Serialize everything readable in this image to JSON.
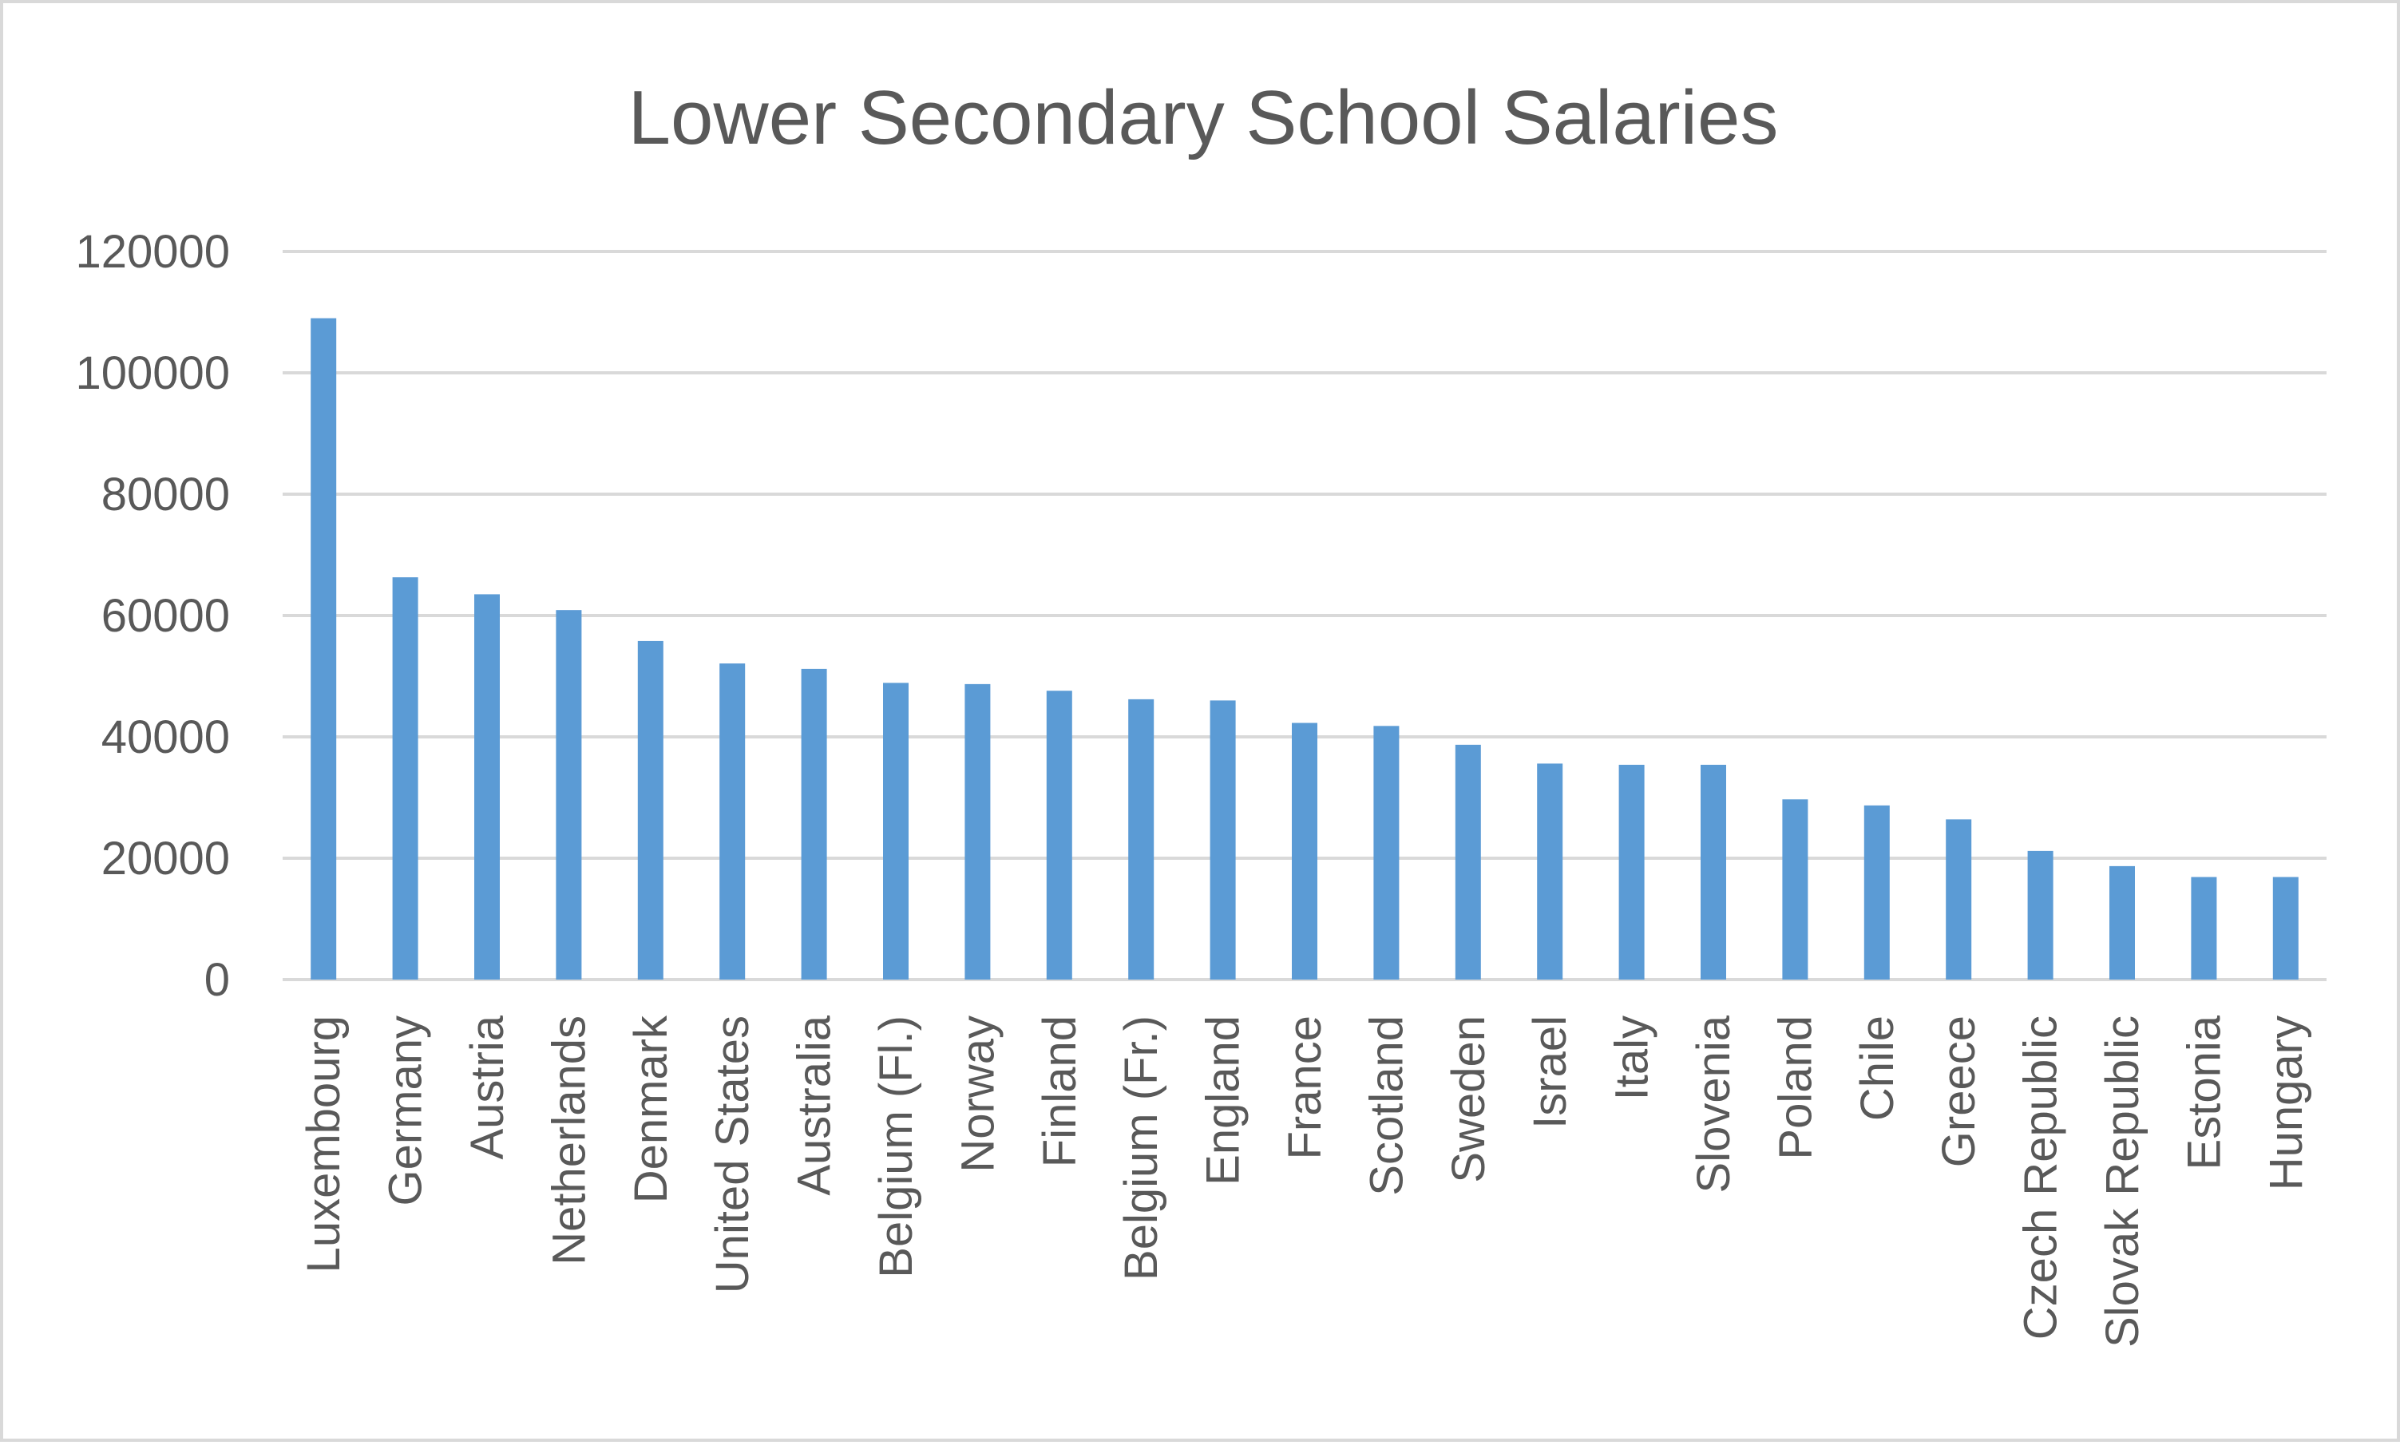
{
  "chart_data": {
    "type": "bar",
    "title": "Lower Secondary School Salaries",
    "xlabel": "",
    "ylabel": "",
    "ylim": [
      0,
      120000
    ],
    "yticks": [
      "0",
      "20000",
      "40000",
      "60000",
      "80000",
      "100000",
      "120000"
    ],
    "grid": true,
    "legend": "none",
    "bar_color": "#5b9bd5",
    "categories": [
      "Luxembourg",
      "Germany",
      "Austria",
      "Netherlands",
      "Denmark",
      "United States",
      "Australia",
      "Belgium (Fl.)",
      "Norway",
      "Finland",
      "Belgium (Fr.)",
      "England",
      "France",
      "Scotland",
      "Sweden",
      "Israel",
      "Italy",
      "Slovenia",
      "Poland",
      "Chile",
      "Greece",
      "Czech Republic",
      "Slovak Republic",
      "Estonia",
      "Hungary"
    ],
    "values": [
      109000,
      66300,
      63500,
      60900,
      55800,
      52100,
      51200,
      48900,
      48700,
      47600,
      46200,
      46000,
      42300,
      41800,
      38700,
      35600,
      35400,
      35400,
      29700,
      28700,
      26400,
      21200,
      18700,
      16900,
      16900
    ]
  }
}
